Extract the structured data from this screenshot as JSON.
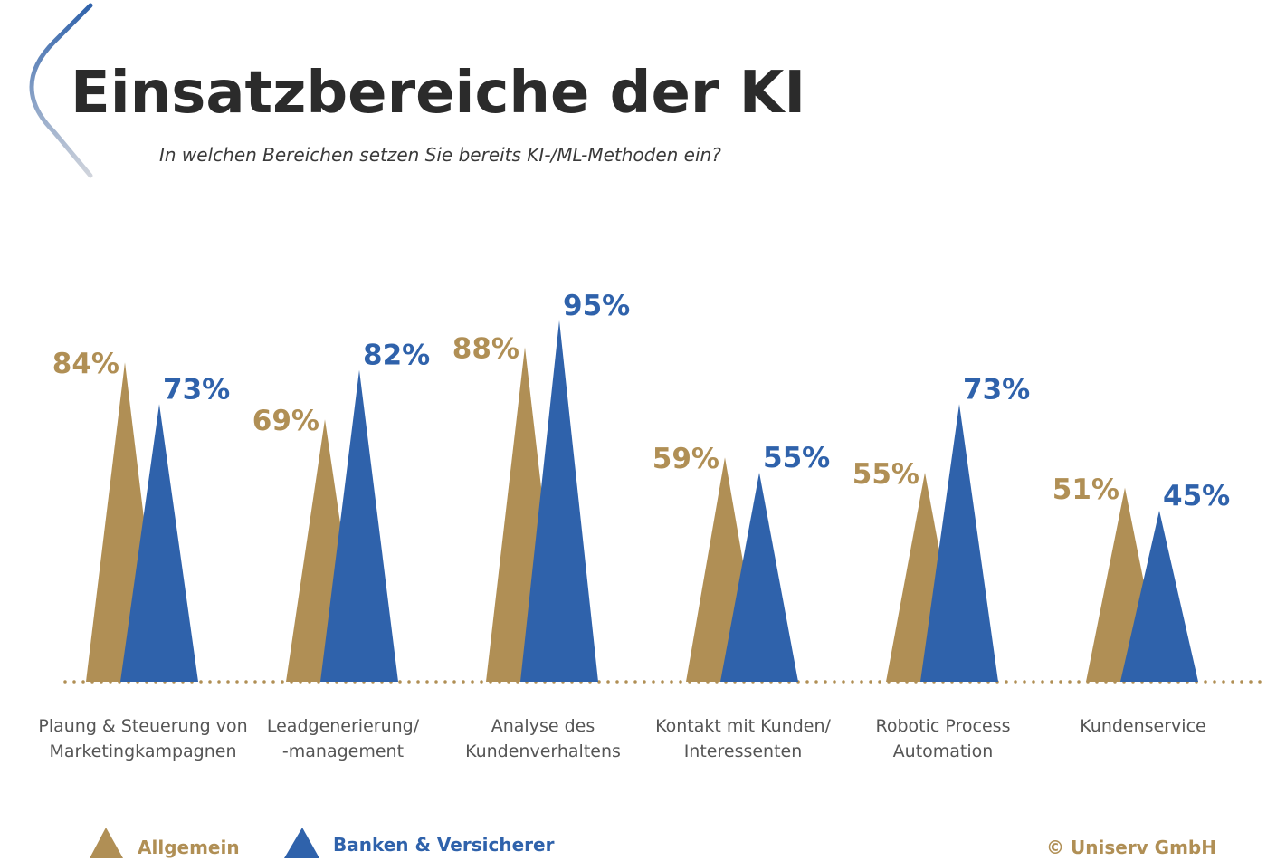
{
  "header": {
    "title": "Einsatzbereiche der KI",
    "subtitle": "In welchen Bereichen setzen Sie bereits KI-/ML-Methoden ein?"
  },
  "colors": {
    "allgemein": "#b08f55",
    "banken": "#2f62ab",
    "baseline": "#b08f55",
    "title": "#2b2b2b",
    "bracket_start": "#2f62ab",
    "bracket_end": "#d0d4dc"
  },
  "chart_data": {
    "type": "bar",
    "categories": [
      [
        "Plaung & Steuerung von",
        "Marketingkampagnen"
      ],
      [
        "Leadgenerierung/",
        "-management"
      ],
      [
        "Analyse des",
        "Kundenverhaltens"
      ],
      [
        "Kontakt mit Kunden/",
        "Interessenten"
      ],
      [
        "Robotic Process",
        "Automation"
      ],
      [
        "Kundenservice"
      ]
    ],
    "series": [
      {
        "name": "Allgemein",
        "values": [
          84,
          69,
          88,
          59,
          55,
          51
        ],
        "labels": [
          "84%",
          "69%",
          "88%",
          "59%",
          "55%",
          "51%"
        ]
      },
      {
        "name": "Banken & Versicherer",
        "values": [
          73,
          82,
          95,
          55,
          73,
          45
        ],
        "labels": [
          "73%",
          "82%",
          "95%",
          "55%",
          "73%",
          "45%"
        ]
      }
    ],
    "unit": "%",
    "ylim": [
      0,
      100
    ],
    "grid": false,
    "legend": "bottom-left"
  },
  "footer": {
    "credit": "© Uniserv GmbH"
  }
}
